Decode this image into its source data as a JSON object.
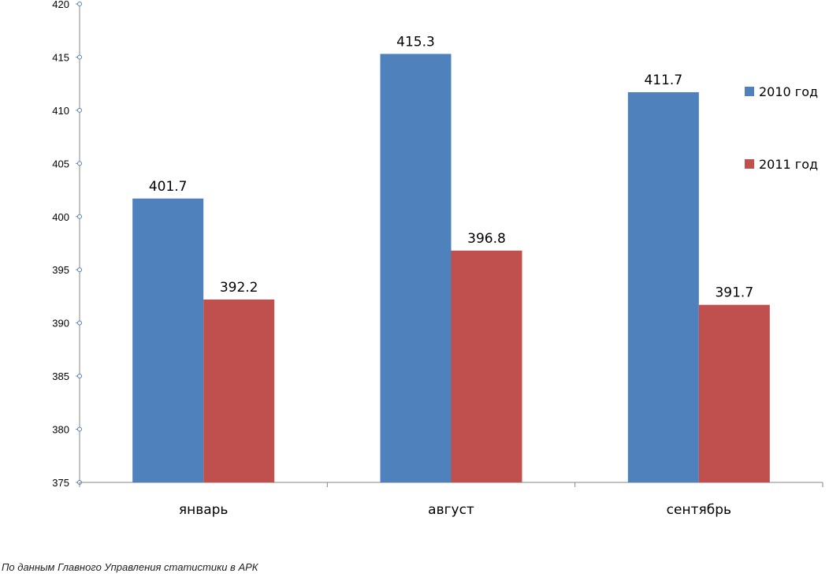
{
  "chart_data": {
    "type": "bar",
    "title": "",
    "xlabel": "",
    "ylabel": "",
    "categories": [
      "январь",
      "август",
      "сентябрь"
    ],
    "series": [
      {
        "name": "2010 год",
        "values": [
          401.7,
          415.3,
          411.7
        ],
        "color": "#4F81BD"
      },
      {
        "name": "2011 год",
        "values": [
          392.2,
          396.8,
          391.7
        ],
        "color": "#C0504D"
      }
    ],
    "ylim": [
      375,
      420
    ],
    "yticks": [
      375,
      380,
      385,
      390,
      395,
      400,
      405,
      410,
      415,
      420
    ],
    "data_labels": true,
    "grid": false,
    "legend_position": "right"
  },
  "source_note": "По данным Главного Управления статистики в АРК"
}
